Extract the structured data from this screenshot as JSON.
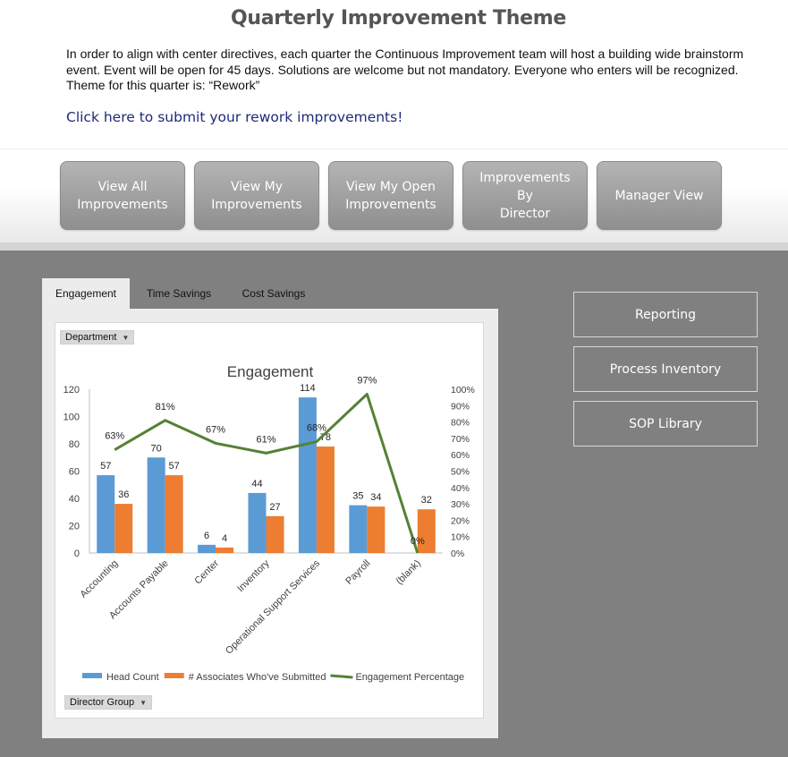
{
  "header": {
    "title": "Quarterly Improvement Theme",
    "intro_line1": "In order to align with center directives, each quarter the Continuous Improvement team will host a building wide brainstorm",
    "intro_line2": "event. Event will be open for 45 days. Solutions are welcome but not mandatory. Everyone who enters will be recognized.",
    "intro_line3": "Theme for this quarter is: “Rework”",
    "submit_link": "Click here to submit your rework improvements!"
  },
  "nav": {
    "buttons": [
      {
        "line1": "View All",
        "line2": "Improvements"
      },
      {
        "line1": "View My",
        "line2": "Improvements"
      },
      {
        "line1": "View My Open",
        "line2": "Improvements"
      },
      {
        "line1": "Improvements By",
        "line2": "Director"
      },
      {
        "line1": "Manager View",
        "line2": ""
      }
    ]
  },
  "tabs": [
    {
      "label": "Engagement",
      "active": true
    },
    {
      "label": "Time Savings",
      "active": false
    },
    {
      "label": "Cost Savings",
      "active": false
    }
  ],
  "filters": {
    "department": "Department",
    "director_group": "Director Group"
  },
  "side_buttons": [
    {
      "label": "Reporting"
    },
    {
      "label": "Process Inventory"
    },
    {
      "label": "SOP Library"
    }
  ],
  "colors": {
    "head_count": "#5b9bd5",
    "associates": "#ed7d31",
    "engagement_line": "#548235"
  },
  "chart_data": {
    "type": "bar",
    "title": "Engagement",
    "categories": [
      "Accounting",
      "Accounts Payable",
      "Center",
      "Inventory",
      "Operational Support Services",
      "Payroll",
      "(blank)"
    ],
    "series": [
      {
        "name": "Head Count",
        "type": "bar",
        "axis": "left",
        "values": [
          57,
          70,
          6,
          44,
          114,
          35,
          0
        ]
      },
      {
        "name": "# Associates Who've Submitted",
        "type": "bar",
        "axis": "left",
        "values": [
          36,
          57,
          4,
          27,
          78,
          34,
          32
        ]
      },
      {
        "name": "Engagement Percentage",
        "type": "line",
        "axis": "right",
        "values": [
          63,
          81,
          67,
          61,
          68,
          97,
          0
        ]
      }
    ],
    "bar_labels": [
      [
        "57",
        "70",
        "6",
        "44",
        "114",
        "35",
        ""
      ],
      [
        "36",
        "57",
        "4",
        "27",
        "78",
        "34",
        "32"
      ]
    ],
    "line_labels": [
      "63%",
      "81%",
      "67%",
      "61%",
      "68%",
      "97%",
      "0%"
    ],
    "ylim": [
      0,
      120
    ],
    "y_ticks": [
      "0",
      "20",
      "40",
      "60",
      "80",
      "100",
      "120"
    ],
    "y2lim": [
      0,
      100
    ],
    "y2_ticks": [
      "0%",
      "10%",
      "20%",
      "30%",
      "40%",
      "50%",
      "60%",
      "70%",
      "80%",
      "90%",
      "100%"
    ],
    "legend": "bottom",
    "grid": false
  }
}
